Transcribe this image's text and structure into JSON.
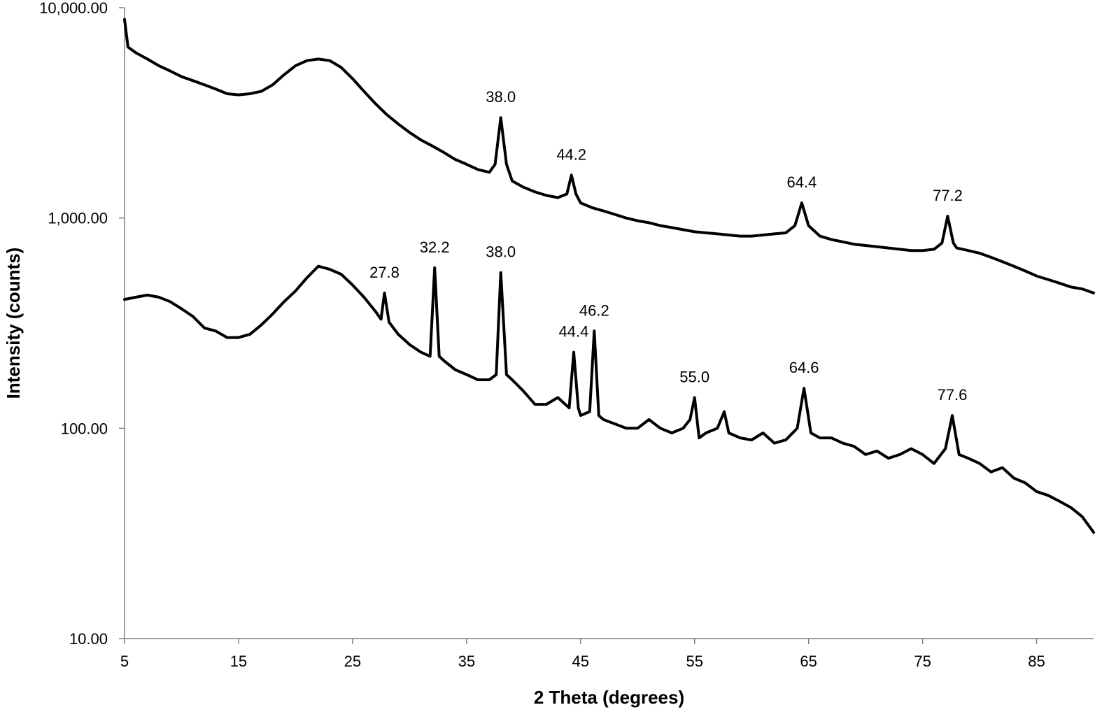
{
  "chart_data": {
    "type": "line",
    "title": "",
    "xlabel": "2 Theta (degrees)",
    "ylabel": "Intensity (counts)",
    "xlim": [
      5,
      90
    ],
    "ylim": [
      10,
      10000
    ],
    "yscale": "log",
    "grid": false,
    "legend": "none",
    "x_ticks": [
      5,
      15,
      25,
      35,
      45,
      55,
      65,
      75,
      85
    ],
    "x_tick_labels": [
      "5",
      "15",
      "25",
      "35",
      "45",
      "55",
      "65",
      "75",
      "85"
    ],
    "y_ticks": [
      10,
      100,
      1000,
      10000
    ],
    "y_tick_labels": [
      "10.00",
      "100.00",
      "1,000.00",
      "10,000.00"
    ],
    "line_color": "#000000",
    "series": [
      {
        "points": [
          [
            5,
            8800
          ],
          [
            5.3,
            6500
          ],
          [
            6,
            6100
          ],
          [
            7,
            5700
          ],
          [
            8,
            5300
          ],
          [
            9,
            5000
          ],
          [
            10,
            4700
          ],
          [
            11,
            4500
          ],
          [
            12,
            4300
          ],
          [
            13,
            4100
          ],
          [
            14,
            3900
          ],
          [
            15,
            3850
          ],
          [
            16,
            3900
          ],
          [
            17,
            4000
          ],
          [
            18,
            4300
          ],
          [
            19,
            4800
          ],
          [
            20,
            5300
          ],
          [
            21,
            5600
          ],
          [
            22,
            5700
          ],
          [
            23,
            5600
          ],
          [
            24,
            5200
          ],
          [
            25,
            4600
          ],
          [
            26,
            4000
          ],
          [
            27,
            3500
          ],
          [
            28,
            3100
          ],
          [
            29,
            2800
          ],
          [
            30,
            2550
          ],
          [
            31,
            2350
          ],
          [
            32,
            2200
          ],
          [
            33,
            2050
          ],
          [
            34,
            1900
          ],
          [
            35,
            1800
          ],
          [
            36,
            1700
          ],
          [
            37,
            1650
          ],
          [
            37.5,
            1800
          ],
          [
            38,
            3000
          ],
          [
            38.5,
            1800
          ],
          [
            39,
            1500
          ],
          [
            40,
            1400
          ],
          [
            41,
            1330
          ],
          [
            42,
            1280
          ],
          [
            43,
            1250
          ],
          [
            43.8,
            1300
          ],
          [
            44.2,
            1600
          ],
          [
            44.6,
            1300
          ],
          [
            45,
            1180
          ],
          [
            46,
            1120
          ],
          [
            47,
            1080
          ],
          [
            48,
            1040
          ],
          [
            49,
            1000
          ],
          [
            50,
            970
          ],
          [
            51,
            950
          ],
          [
            52,
            920
          ],
          [
            53,
            900
          ],
          [
            54,
            880
          ],
          [
            55,
            860
          ],
          [
            56,
            850
          ],
          [
            57,
            840
          ],
          [
            58,
            830
          ],
          [
            59,
            820
          ],
          [
            60,
            820
          ],
          [
            61,
            830
          ],
          [
            62,
            840
          ],
          [
            63,
            850
          ],
          [
            63.8,
            920
          ],
          [
            64.4,
            1180
          ],
          [
            65,
            920
          ],
          [
            66,
            820
          ],
          [
            67,
            790
          ],
          [
            68,
            770
          ],
          [
            69,
            750
          ],
          [
            70,
            740
          ],
          [
            71,
            730
          ],
          [
            72,
            720
          ],
          [
            73,
            710
          ],
          [
            74,
            700
          ],
          [
            75,
            700
          ],
          [
            76,
            710
          ],
          [
            76.7,
            760
          ],
          [
            77.2,
            1020
          ],
          [
            77.7,
            760
          ],
          [
            78,
            720
          ],
          [
            79,
            700
          ],
          [
            80,
            680
          ],
          [
            81,
            650
          ],
          [
            82,
            620
          ],
          [
            83,
            590
          ],
          [
            84,
            560
          ],
          [
            85,
            530
          ],
          [
            86,
            510
          ],
          [
            87,
            490
          ],
          [
            88,
            470
          ],
          [
            89,
            460
          ],
          [
            90,
            440
          ]
        ]
      },
      {
        "points": [
          [
            5,
            410
          ],
          [
            6,
            420
          ],
          [
            7,
            430
          ],
          [
            8,
            420
          ],
          [
            9,
            400
          ],
          [
            10,
            370
          ],
          [
            11,
            340
          ],
          [
            12,
            300
          ],
          [
            13,
            290
          ],
          [
            14,
            270
          ],
          [
            15,
            270
          ],
          [
            16,
            280
          ],
          [
            17,
            310
          ],
          [
            18,
            350
          ],
          [
            19,
            400
          ],
          [
            20,
            450
          ],
          [
            21,
            520
          ],
          [
            22,
            590
          ],
          [
            23,
            570
          ],
          [
            24,
            540
          ],
          [
            25,
            480
          ],
          [
            26,
            420
          ],
          [
            27,
            360
          ],
          [
            27.5,
            330
          ],
          [
            27.8,
            440
          ],
          [
            28.2,
            320
          ],
          [
            29,
            280
          ],
          [
            30,
            250
          ],
          [
            31,
            230
          ],
          [
            31.8,
            220
          ],
          [
            32.2,
            580
          ],
          [
            32.6,
            220
          ],
          [
            33,
            210
          ],
          [
            34,
            190
          ],
          [
            35,
            180
          ],
          [
            36,
            170
          ],
          [
            37,
            170
          ],
          [
            37.6,
            180
          ],
          [
            38,
            550
          ],
          [
            38.5,
            180
          ],
          [
            39,
            170
          ],
          [
            40,
            150
          ],
          [
            41,
            130
          ],
          [
            42,
            130
          ],
          [
            43,
            140
          ],
          [
            44,
            125
          ],
          [
            44.4,
            230
          ],
          [
            44.8,
            125
          ],
          [
            45,
            115
          ],
          [
            45.8,
            120
          ],
          [
            46.2,
            290
          ],
          [
            46.6,
            115
          ],
          [
            47,
            110
          ],
          [
            48,
            105
          ],
          [
            49,
            100
          ],
          [
            50,
            100
          ],
          [
            51,
            110
          ],
          [
            52,
            100
          ],
          [
            53,
            95
          ],
          [
            54,
            100
          ],
          [
            54.6,
            110
          ],
          [
            55,
            140
          ],
          [
            55.4,
            90
          ],
          [
            56,
            95
          ],
          [
            57,
            100
          ],
          [
            57.6,
            120
          ],
          [
            58,
            95
          ],
          [
            59,
            90
          ],
          [
            60,
            88
          ],
          [
            61,
            95
          ],
          [
            62,
            85
          ],
          [
            63,
            88
          ],
          [
            64,
            100
          ],
          [
            64.6,
            155
          ],
          [
            65.2,
            95
          ],
          [
            66,
            90
          ],
          [
            67,
            90
          ],
          [
            68,
            85
          ],
          [
            69,
            82
          ],
          [
            70,
            75
          ],
          [
            71,
            78
          ],
          [
            72,
            72
          ],
          [
            73,
            75
          ],
          [
            74,
            80
          ],
          [
            75,
            75
          ],
          [
            76,
            68
          ],
          [
            77,
            80
          ],
          [
            77.6,
            115
          ],
          [
            78.2,
            75
          ],
          [
            79,
            72
          ],
          [
            80,
            68
          ],
          [
            81,
            62
          ],
          [
            82,
            65
          ],
          [
            83,
            58
          ],
          [
            84,
            55
          ],
          [
            85,
            50
          ],
          [
            86,
            48
          ],
          [
            87,
            45
          ],
          [
            88,
            42
          ],
          [
            89,
            38
          ],
          [
            90,
            32
          ]
        ]
      }
    ],
    "annotations": [
      {
        "text": "38.0",
        "x": 38.0,
        "y": 3000
      },
      {
        "text": "44.2",
        "x": 44.2,
        "y": 1600
      },
      {
        "text": "64.4",
        "x": 64.4,
        "y": 1180
      },
      {
        "text": "77.2",
        "x": 77.2,
        "y": 1020
      },
      {
        "text": "27.8",
        "x": 27.8,
        "y": 440
      },
      {
        "text": "32.2",
        "x": 32.2,
        "y": 580
      },
      {
        "text": "38.0",
        "x": 38.0,
        "y": 550
      },
      {
        "text": "44.4",
        "x": 44.4,
        "y": 230
      },
      {
        "text": "46.2",
        "x": 46.2,
        "y": 290
      },
      {
        "text": "55.0",
        "x": 55.0,
        "y": 140
      },
      {
        "text": "64.6",
        "x": 64.6,
        "y": 155
      },
      {
        "text": "77.6",
        "x": 77.6,
        "y": 115
      }
    ]
  }
}
